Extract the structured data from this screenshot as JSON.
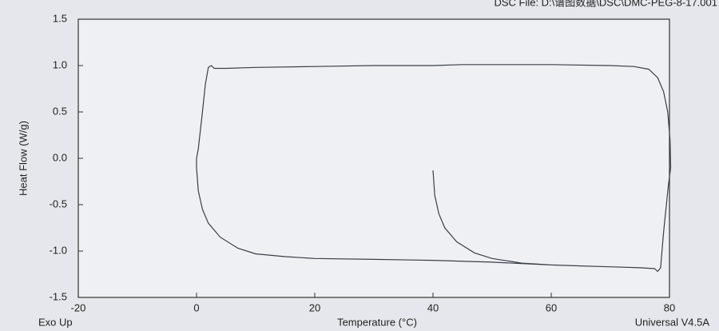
{
  "chart_data": {
    "type": "line",
    "file_label": "DSC File: D:\\谱图数据\\DSC\\DMC-PEG-8-17.001",
    "ylabel": "Heat Flow (W/g)",
    "xlabel": "Temperature (°C)",
    "corner_left": "Exo Up",
    "corner_right": "Universal V4.5A",
    "xlim": [
      -20,
      80
    ],
    "xticks": [
      -20,
      0,
      20,
      40,
      60,
      80
    ],
    "ylim": [
      -1.5,
      1.5
    ],
    "yticks": [
      1.5,
      {
        "value": 1,
        "label": "1.0"
      },
      0.5,
      {
        "value": 0,
        "label": "0.0"
      },
      -0.5,
      {
        "value": -1,
        "label": "-1.0"
      },
      -1.5
    ],
    "series": [
      {
        "color": "#3a3f46",
        "x": [
          40.0,
          40.3,
          41,
          42,
          44,
          47,
          50,
          55,
          60,
          65,
          70,
          75,
          77.5,
          78,
          78.5,
          79,
          79.8,
          80.2,
          80.1,
          79.7,
          79,
          78,
          76.5,
          74,
          70,
          60,
          45,
          40,
          30,
          20,
          10,
          5,
          3,
          2.5,
          2,
          1.5,
          1,
          0.3,
          0,
          0,
          0.3,
          1,
          2,
          4,
          7,
          10,
          15,
          20,
          30,
          40,
          50,
          60
        ],
        "values": [
          -0.13,
          -0.4,
          -0.6,
          -0.75,
          -0.9,
          -1.02,
          -1.08,
          -1.13,
          -1.15,
          -1.16,
          -1.17,
          -1.18,
          -1.19,
          -1.22,
          -1.18,
          -0.8,
          -0.3,
          -0.1,
          0.2,
          0.5,
          0.72,
          0.87,
          0.96,
          0.99,
          1.0,
          1.01,
          1.01,
          1.0,
          1.0,
          0.99,
          0.98,
          0.97,
          0.97,
          1.0,
          0.98,
          0.8,
          0.5,
          0.1,
          0.0,
          -0.1,
          -0.35,
          -0.55,
          -0.7,
          -0.85,
          -0.97,
          -1.03,
          -1.06,
          -1.08,
          -1.09,
          -1.1,
          -1.12,
          -1.15
        ]
      }
    ]
  }
}
